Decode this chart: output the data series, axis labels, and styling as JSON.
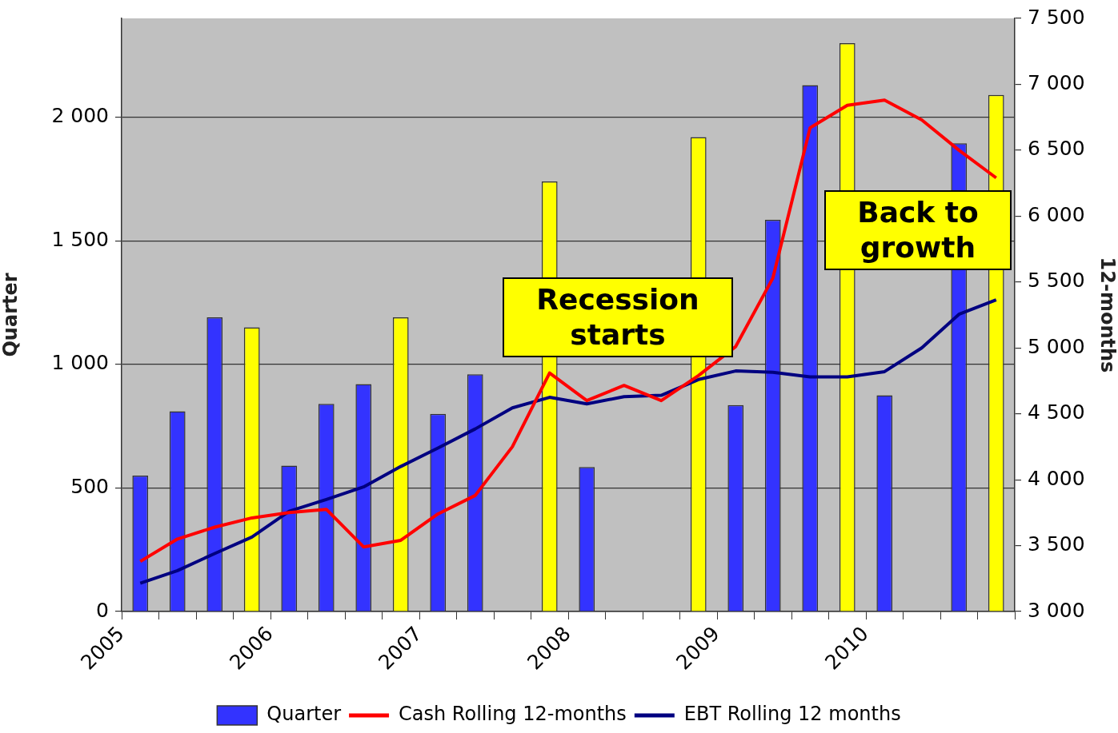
{
  "chart_data": {
    "type": "bar",
    "ylabel": "Quarter",
    "y2label": "12-months",
    "x": [
      2005.125,
      2005.375,
      2005.625,
      2005.875,
      2006.125,
      2006.375,
      2006.625,
      2006.875,
      2007.125,
      2007.375,
      2007.625,
      2007.875,
      2008.125,
      2008.375,
      2008.625,
      2008.875,
      2009.125,
      2009.375,
      2009.625,
      2009.875,
      2010.125,
      2010.375,
      2010.625,
      2010.875
    ],
    "xlim": [
      2005,
      2011
    ],
    "xticks": [
      2005,
      {
        "value": 2005.25,
        "label": null
      },
      {
        "value": 2005.5,
        "label": null
      },
      {
        "value": 2005.75,
        "label": null
      },
      2006,
      {
        "value": 2006.25,
        "label": null
      },
      {
        "value": 2006.5,
        "label": null
      },
      {
        "value": 2006.75,
        "label": null
      },
      2007,
      {
        "value": 2007.25,
        "label": null
      },
      {
        "value": 2007.5,
        "label": null
      },
      {
        "value": 2007.75,
        "label": null
      },
      2008,
      {
        "value": 2008.25,
        "label": null
      },
      {
        "value": 2008.5,
        "label": null
      },
      {
        "value": 2008.75,
        "label": null
      },
      2009,
      {
        "value": 2009.25,
        "label": null
      },
      {
        "value": 2009.5,
        "label": null
      },
      {
        "value": 2009.75,
        "label": null
      },
      2010,
      {
        "value": 2010.25,
        "label": null
      },
      {
        "value": 2010.5,
        "label": null
      },
      {
        "value": 2010.75,
        "label": null
      },
      {
        "value": 2011,
        "label": null
      }
    ],
    "series": [
      {
        "name": "Quarter",
        "color": "#3333ff",
        "colors": [
          "#3333ff",
          "#3333ff",
          "#3333ff",
          "#ffff00",
          "#3333ff",
          "#3333ff",
          "#3333ff",
          "#ffff00",
          "#3333ff",
          "#3333ff",
          "#3333ff",
          "#ffff00",
          "#3333ff",
          "#3333ff",
          "#3333ff",
          "#ffff00",
          "#3333ff",
          "#3333ff",
          "#3333ff",
          "#ffff00",
          "#3333ff",
          "#3333ff",
          "#3333ff",
          "#ffff00"
        ],
        "values": [
          550,
          810,
          1190,
          1150,
          590,
          840,
          920,
          1190,
          800,
          960,
          null,
          1740,
          585,
          null,
          null,
          1920,
          835,
          1585,
          2130,
          2300,
          875,
          null,
          1895,
          2090
        ]
      },
      {
        "name": "Cash Rolling 12-months",
        "type": "line",
        "axis": "y2",
        "color": "#ff0000",
        "values": [
          3380,
          3550,
          3640,
          3710,
          3750,
          3775,
          3490,
          3540,
          3740,
          3880,
          4250,
          4810,
          4600,
          4715,
          4600,
          4790,
          5010,
          5530,
          6670,
          6840,
          6880,
          6730,
          6500,
          6290
        ]
      },
      {
        "name": "EBT Rolling 12 months",
        "type": "line",
        "axis": "y2",
        "color": "#000080",
        "values": [
          3215,
          3310,
          3440,
          3565,
          3760,
          3850,
          3945,
          4100,
          4240,
          4385,
          4545,
          4625,
          4575,
          4630,
          4640,
          4760,
          4825,
          4815,
          4780,
          4780,
          4820,
          5000,
          5255,
          5365
        ]
      }
    ],
    "ylim": [
      0,
      2400
    ],
    "yticks": [
      {
        "value": 0,
        "label": "0"
      },
      {
        "value": 500,
        "label": "500"
      },
      {
        "value": 1000,
        "label": "1 000"
      },
      {
        "value": 1500,
        "label": "1 500"
      },
      {
        "value": 2000,
        "label": "2 000"
      }
    ],
    "y2lim": [
      3000,
      7500
    ],
    "y2ticks": [
      {
        "value": 3000,
        "label": "3 000"
      },
      {
        "value": 3500,
        "label": "3 500"
      },
      {
        "value": 4000,
        "label": "4 000"
      },
      {
        "value": 4500,
        "label": "4 500"
      },
      {
        "value": 5000,
        "label": "5 000"
      },
      {
        "value": 5500,
        "label": "5 500"
      },
      {
        "value": 6000,
        "label": "6 000"
      },
      {
        "value": 6500,
        "label": "6 500"
      },
      {
        "value": 7000,
        "label": "7 000"
      },
      {
        "value": 7500,
        "label": "7 500"
      }
    ],
    "grid": "y",
    "legend": "bottom",
    "marker": "none",
    "line_style": "solid",
    "annotations": [
      "Recession starts",
      "Back to growth"
    ]
  }
}
